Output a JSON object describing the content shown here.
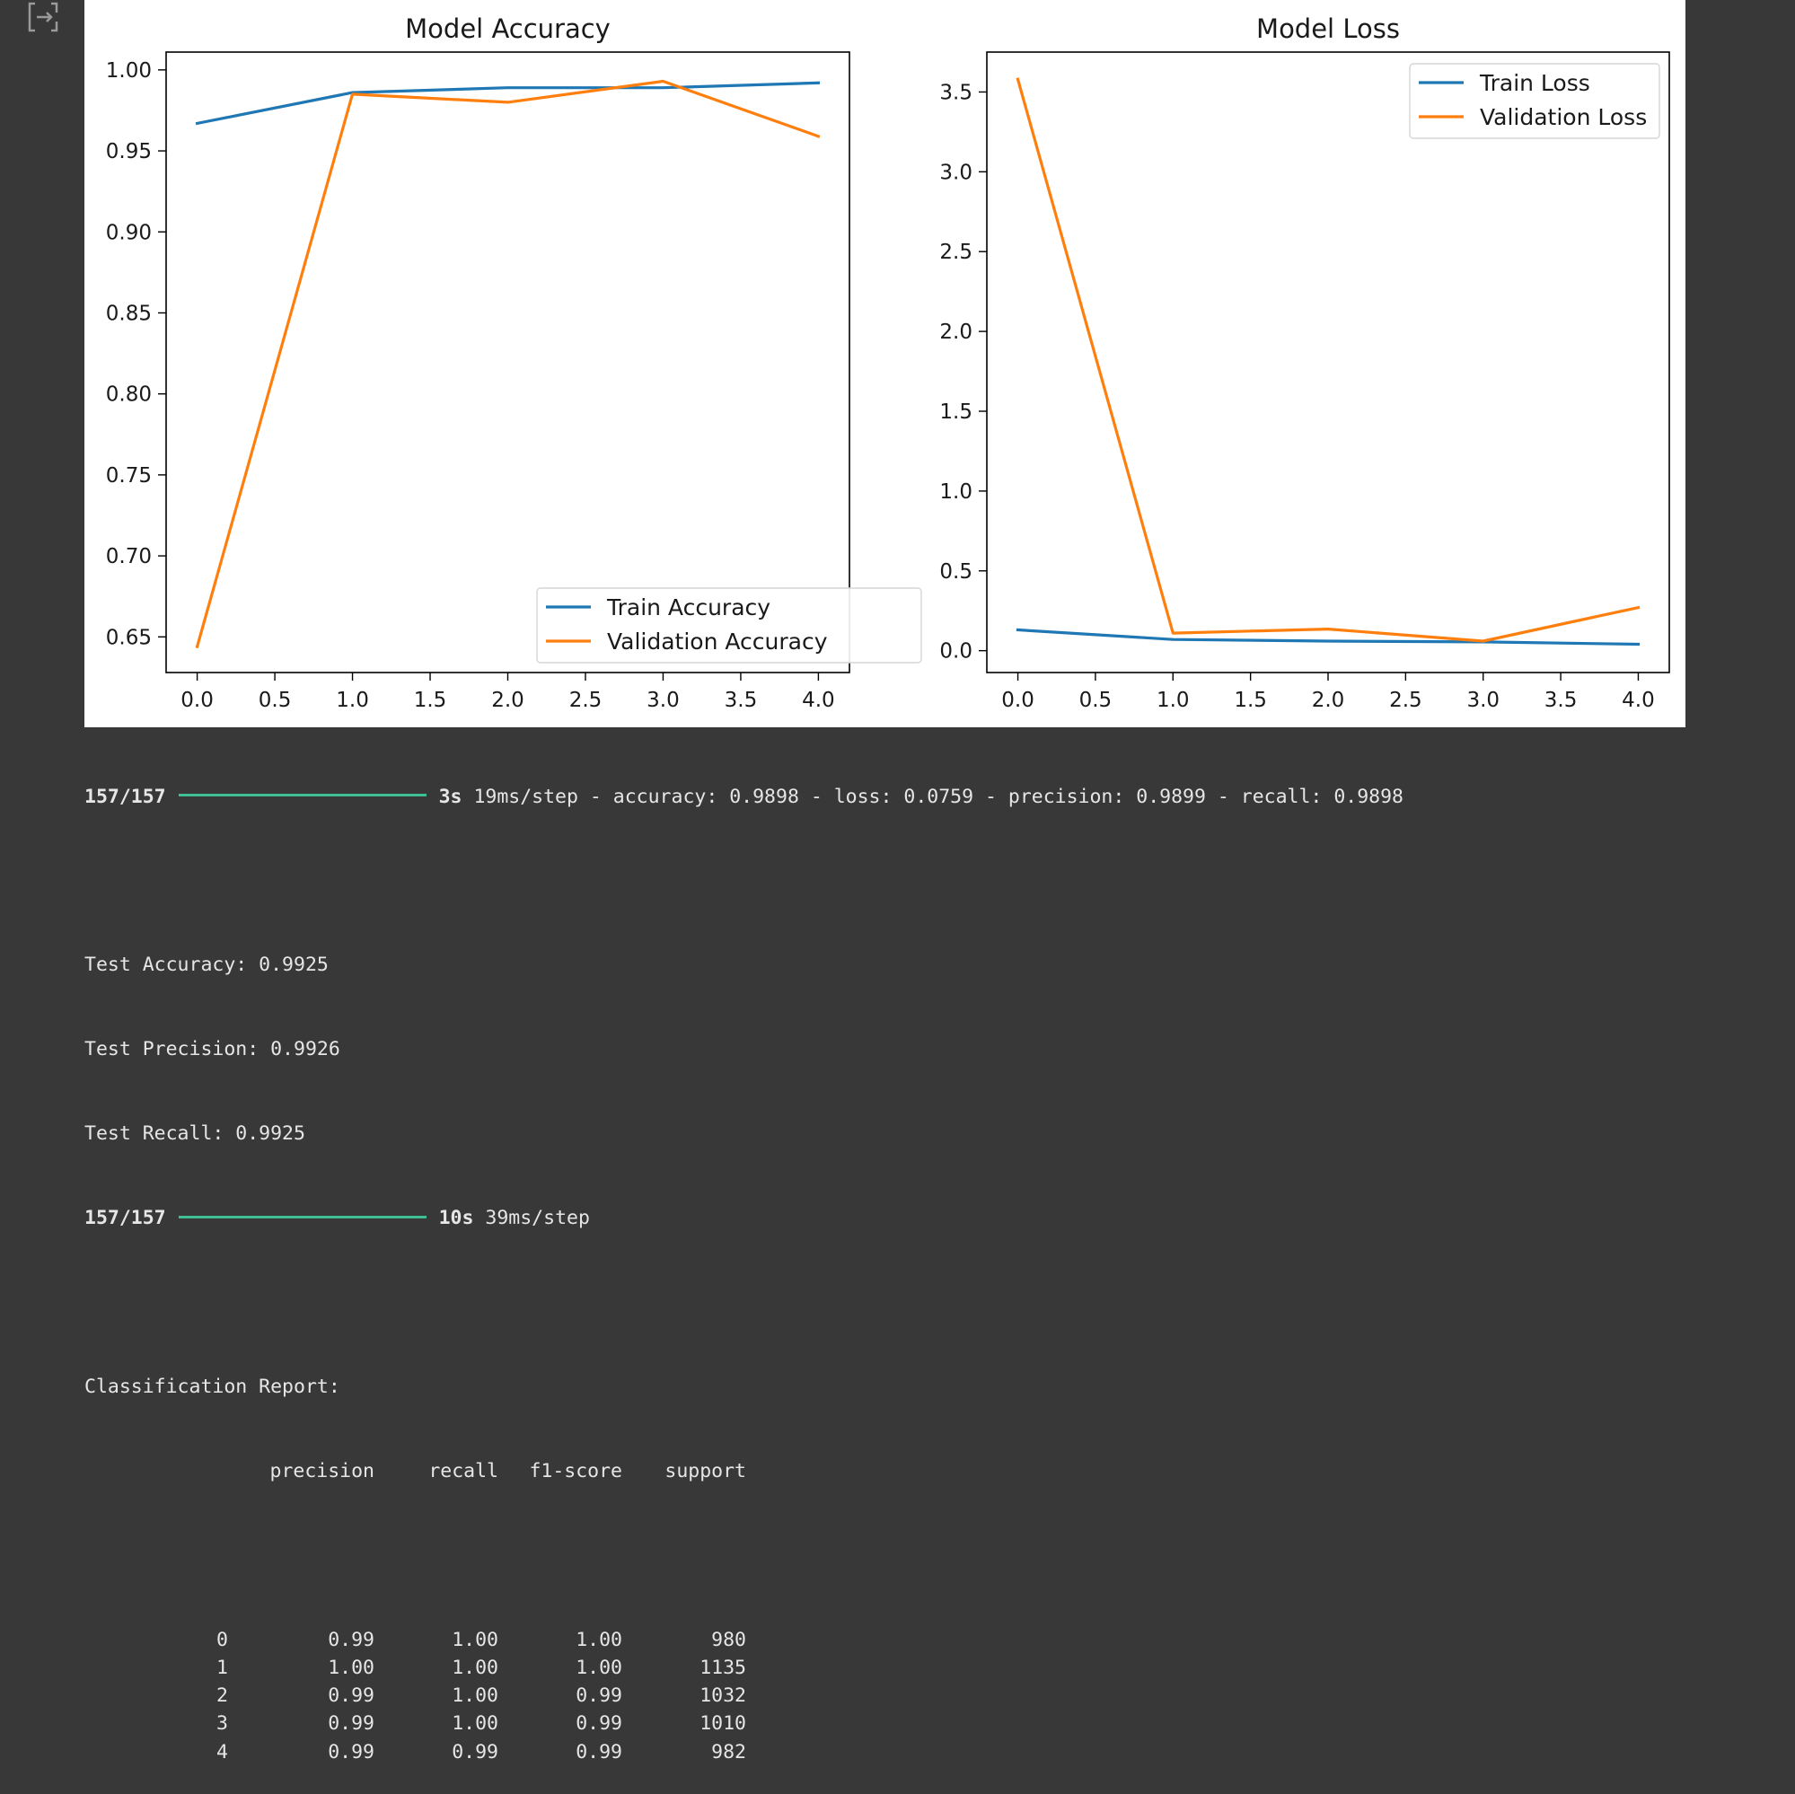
{
  "gutter": {
    "icon": "output-expand-icon"
  },
  "charts": {
    "accuracy": {
      "type": "line",
      "title": "Model Accuracy",
      "x": [
        0,
        1,
        2,
        3,
        4
      ],
      "xticks": [
        "0.0",
        "0.5",
        "1.0",
        "1.5",
        "2.0",
        "2.5",
        "3.0",
        "3.5",
        "4.0"
      ],
      "yticks": [
        "0.65",
        "0.70",
        "0.75",
        "0.80",
        "0.85",
        "0.90",
        "0.95",
        "1.00"
      ],
      "xlim": [
        -0.2,
        4.2
      ],
      "ylim": [
        0.628,
        1.011
      ],
      "series": [
        {
          "name": "Train Accuracy",
          "color": "#1f77b4",
          "values": [
            0.967,
            0.986,
            0.989,
            0.989,
            0.992
          ]
        },
        {
          "name": "Validation Accuracy",
          "color": "#ff7f0e",
          "values": [
            0.644,
            0.985,
            0.98,
            0.993,
            0.959
          ]
        }
      ],
      "legend_position": "lower-right"
    },
    "loss": {
      "type": "line",
      "title": "Model Loss",
      "x": [
        0,
        1,
        2,
        3,
        4
      ],
      "xticks": [
        "0.0",
        "0.5",
        "1.0",
        "1.5",
        "2.0",
        "2.5",
        "3.0",
        "3.5",
        "4.0"
      ],
      "yticks": [
        "0.0",
        "0.5",
        "1.0",
        "1.5",
        "2.0",
        "2.5",
        "3.0",
        "3.5"
      ],
      "xlim": [
        -0.2,
        4.2
      ],
      "ylim": [
        -0.137,
        3.75
      ],
      "series": [
        {
          "name": "Train Loss",
          "color": "#1f77b4",
          "values": [
            0.13,
            0.07,
            0.06,
            0.055,
            0.04
          ]
        },
        {
          "name": "Validation Loss",
          "color": "#ff7f0e",
          "values": [
            3.58,
            0.11,
            0.135,
            0.06,
            0.27
          ]
        }
      ],
      "legend_position": "upper-right"
    }
  },
  "console": {
    "progress1": {
      "steps": "157/157",
      "time": "3s",
      "rest": "19ms/step - accuracy: 0.9898 - loss: 0.0759 - precision: 0.9899 - recall: 0.9898"
    },
    "test_accuracy": "Test Accuracy: 0.9925",
    "test_precision": "Test Precision: 0.9926",
    "test_recall": "Test Recall: 0.9925",
    "progress2": {
      "steps": "157/157",
      "time": "10s",
      "rest": "39ms/step"
    },
    "report_title": "Classification Report:",
    "report_headers": [
      "precision",
      "recall",
      "f1-score",
      "support"
    ],
    "report_rows": [
      [
        "0",
        "0.99",
        "1.00",
        "1.00",
        "980"
      ],
      [
        "1",
        "1.00",
        "1.00",
        "1.00",
        "1135"
      ],
      [
        "2",
        "0.99",
        "1.00",
        "0.99",
        "1032"
      ],
      [
        "3",
        "0.99",
        "1.00",
        "0.99",
        "1010"
      ],
      [
        "4",
        "0.99",
        "0.99",
        "0.99",
        "982"
      ]
    ]
  }
}
